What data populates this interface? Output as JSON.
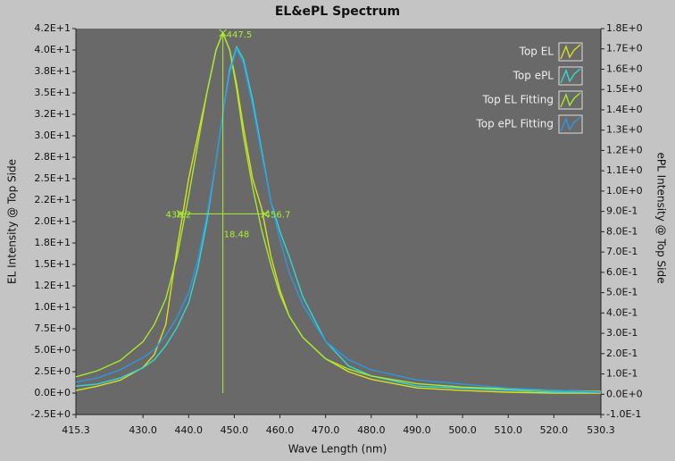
{
  "chart_data": {
    "type": "line",
    "title": "EL&ePL Spectrum",
    "x_label": "Wave Length (nm)",
    "y_label": "EL Intensity @ Top Side",
    "y2_label": "ePL Intensity @ Top Side",
    "x": [
      415.3,
      420,
      425,
      430,
      432.5,
      435,
      437.5,
      440,
      442,
      444,
      446,
      447.5,
      449,
      450.5,
      452,
      454,
      456,
      458,
      460,
      462,
      465,
      470,
      475,
      480,
      490,
      500,
      510,
      520,
      530.3
    ],
    "series": [
      {
        "name": "Top EL",
        "color": "#d8e020",
        "values": [
          0.3,
          0.8,
          1.5,
          3,
          4.5,
          8,
          17,
          25,
          30,
          35,
          40,
          42,
          40,
          36,
          31,
          25,
          21.5,
          16,
          12,
          9,
          6.5,
          4,
          2.5,
          1.6,
          0.6,
          0.3,
          0.1,
          0,
          0
        ]
      },
      {
        "name": "Top ePL",
        "color": "#30d8d0",
        "axis": "y2",
        "values": [
          0.04,
          0.05,
          0.08,
          0.13,
          0.17,
          0.24,
          0.33,
          0.45,
          0.62,
          0.85,
          1.15,
          1.38,
          1.6,
          1.71,
          1.65,
          1.45,
          1.2,
          0.95,
          0.8,
          0.68,
          0.48,
          0.26,
          0.14,
          0.09,
          0.04,
          0.03,
          0.02,
          0.01,
          0.01
        ]
      },
      {
        "name": "Top EL Fitting",
        "color": "#a8e830",
        "values": [
          1.9,
          2.6,
          3.8,
          6,
          8,
          11,
          16,
          23,
          29,
          35,
          40,
          42,
          40,
          35.5,
          30,
          24,
          19,
          15,
          11.5,
          9,
          6.5,
          4,
          2.8,
          2,
          1.1,
          0.7,
          0.5,
          0.3,
          0.2
        ]
      },
      {
        "name": "Top ePL Fitting",
        "color": "#2f96e0",
        "axis": "y2",
        "values": [
          0.06,
          0.08,
          0.12,
          0.18,
          0.22,
          0.29,
          0.38,
          0.5,
          0.66,
          0.88,
          1.15,
          1.38,
          1.58,
          1.7,
          1.63,
          1.42,
          1.18,
          0.95,
          0.76,
          0.6,
          0.44,
          0.26,
          0.17,
          0.12,
          0.07,
          0.05,
          0.03,
          0.02,
          0.01
        ]
      }
    ],
    "xlim": [
      415.3,
      530.3
    ],
    "xticks": [
      415.3,
      {
        "value": 430,
        "label": "430.0"
      },
      {
        "value": 440,
        "label": "440.0"
      },
      {
        "value": 450,
        "label": "450.0"
      },
      {
        "value": 460,
        "label": "460.0"
      },
      {
        "value": 470,
        "label": "470.0"
      },
      {
        "value": 480,
        "label": "480.0"
      },
      {
        "value": 490,
        "label": "490.0"
      },
      {
        "value": 500,
        "label": "500.0"
      },
      {
        "value": 510,
        "label": "510.0"
      },
      {
        "value": 520,
        "label": "520.0"
      },
      530.3
    ],
    "ylim": [
      -2.5,
      42.5
    ],
    "yticks": [
      {
        "value": 42.5,
        "label": "4.2E+1"
      },
      {
        "value": 40,
        "label": "4.0E+1"
      },
      {
        "value": 37.5,
        "label": "3.8E+1"
      },
      {
        "value": 35,
        "label": "3.5E+1"
      },
      {
        "value": 32.5,
        "label": "3.2E+1"
      },
      {
        "value": 30,
        "label": "3.0E+1"
      },
      {
        "value": 27.5,
        "label": "2.8E+1"
      },
      {
        "value": 25,
        "label": "2.5E+1"
      },
      {
        "value": 22.5,
        "label": "2.2E+1"
      },
      {
        "value": 20,
        "label": "2.0E+1"
      },
      {
        "value": 17.5,
        "label": "1.8E+1"
      },
      {
        "value": 15,
        "label": "1.5E+1"
      },
      {
        "value": 12.5,
        "label": "1.2E+1"
      },
      {
        "value": 10,
        "label": "1.0E+1"
      },
      {
        "value": 7.5,
        "label": "7.5E+0"
      },
      {
        "value": 5,
        "label": "5.0E+0"
      },
      {
        "value": 2.5,
        "label": "2.5E+0"
      },
      {
        "value": 0,
        "label": "0.0E+0"
      },
      {
        "value": -2.5,
        "label": "-2.5E+0"
      }
    ],
    "y2lim": [
      -0.1,
      1.8
    ],
    "y2ticks": [
      {
        "value": 1.8,
        "label": "1.8E+0"
      },
      {
        "value": 1.7,
        "label": "1.7E+0"
      },
      {
        "value": 1.6,
        "label": "1.6E+0"
      },
      {
        "value": 1.5,
        "label": "1.5E+0"
      },
      {
        "value": 1.4,
        "label": "1.4E+0"
      },
      {
        "value": 1.3,
        "label": "1.3E+0"
      },
      {
        "value": 1.2,
        "label": "1.2E+0"
      },
      {
        "value": 1.1,
        "label": "1.1E+0"
      },
      {
        "value": 1.0,
        "label": "1.0E+0"
      },
      {
        "value": 0.9,
        "label": "9.0E-1"
      },
      {
        "value": 0.8,
        "label": "8.0E-1"
      },
      {
        "value": 0.7,
        "label": "7.0E-1"
      },
      {
        "value": 0.6,
        "label": "6.0E-1"
      },
      {
        "value": 0.5,
        "label": "5.0E-1"
      },
      {
        "value": 0.4,
        "label": "4.0E-1"
      },
      {
        "value": 0.3,
        "label": "3.0E-1"
      },
      {
        "value": 0.2,
        "label": "2.0E-1"
      },
      {
        "value": 0.1,
        "label": "1.0E-1"
      },
      {
        "value": 0,
        "label": "0.0E+0"
      },
      {
        "value": -0.1,
        "label": "-1.0E-1"
      }
    ],
    "legend": "top-right",
    "peak": {
      "x": 447.5,
      "y": 42
    },
    "fwhm": {
      "left": 438.2,
      "right": 456.7,
      "width": 18.48,
      "level": 20.9,
      "color": "#a8f030"
    }
  }
}
